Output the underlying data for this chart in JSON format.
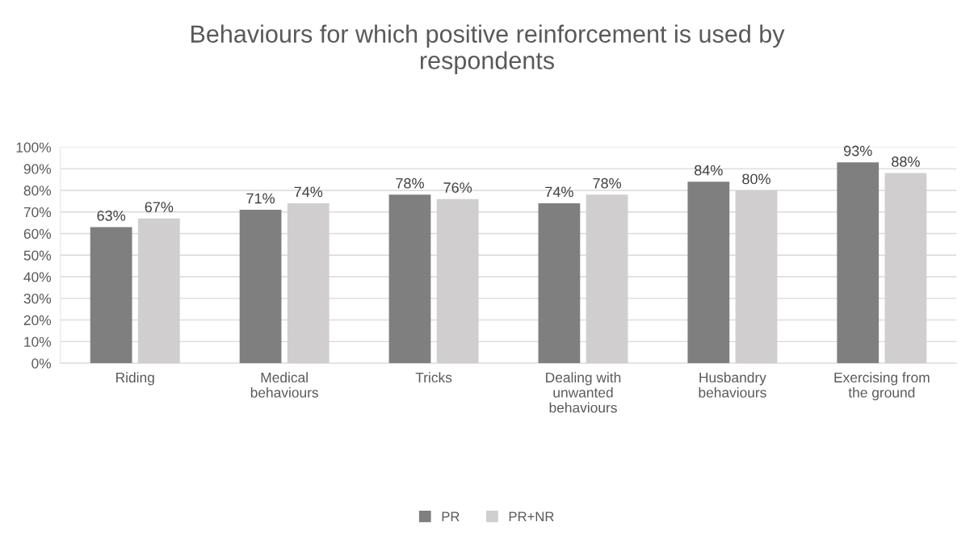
{
  "chart_data": {
    "type": "bar",
    "title": "Behaviours for which positive reinforcement is used by respondents",
    "categories": [
      "Riding",
      "Medical behaviours",
      "Tricks",
      "Dealing with unwanted behaviours",
      "Husbandry behaviours",
      "Exercising from the ground"
    ],
    "series": [
      {
        "name": "PR",
        "color": "#7f7f7f",
        "values": [
          63,
          71,
          78,
          74,
          84,
          93
        ],
        "value_labels": [
          "63%",
          "71%",
          "78%",
          "74%",
          "84%",
          "93%"
        ]
      },
      {
        "name": "PR+NR",
        "color": "#d0cece",
        "values": [
          67,
          74,
          76,
          78,
          80,
          88
        ],
        "value_labels": [
          "67%",
          "74%",
          "76%",
          "78%",
          "80%",
          "88%"
        ]
      }
    ],
    "ylim": [
      0,
      100
    ],
    "yticks": [
      {
        "value": 0,
        "label": "0%"
      },
      {
        "value": 10,
        "label": "10%"
      },
      {
        "value": 20,
        "label": "20%"
      },
      {
        "value": 30,
        "label": "30%"
      },
      {
        "value": 40,
        "label": "40%"
      },
      {
        "value": 50,
        "label": "50%"
      },
      {
        "value": 60,
        "label": "60%"
      },
      {
        "value": 70,
        "label": "70%"
      },
      {
        "value": 80,
        "label": "80%"
      },
      {
        "value": 90,
        "label": "90%"
      },
      {
        "value": 100,
        "label": "100%"
      }
    ],
    "grid": "y",
    "legend": "bottom"
  }
}
